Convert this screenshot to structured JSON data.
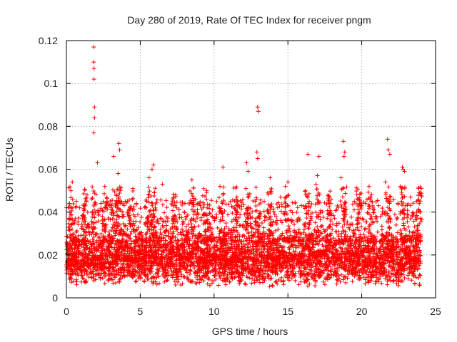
{
  "chart_data": {
    "type": "scatter",
    "title": "Day 280 of 2019, Rate Of TEC Index for receiver pngm",
    "xlabel": "GPS time / hours",
    "ylabel": "ROTI / TECUs",
    "xlim": [
      0,
      25
    ],
    "ylim": [
      0,
      0.12
    ],
    "xticks": [
      0,
      5,
      10,
      15,
      20,
      25
    ],
    "xtick_labels": [
      "0",
      "5",
      "10",
      "15",
      "20",
      "25"
    ],
    "yticks": [
      0,
      0.02,
      0.04,
      0.06,
      0.08,
      0.1,
      0.12
    ],
    "ytick_labels": [
      "0",
      "0.02",
      "0.04",
      "0.06",
      "0.08",
      "0.1",
      "0.12"
    ],
    "grid": true,
    "marker": "+",
    "color": "#ff0000",
    "series": [
      {
        "name": "ROTI",
        "x_range": [
          0,
          24
        ],
        "bulk_range": [
          0.005,
          0.03
        ],
        "points": [
          [
            1.85,
            0.117
          ],
          [
            1.85,
            0.11
          ],
          [
            1.87,
            0.107
          ],
          [
            1.87,
            0.102
          ],
          [
            1.9,
            0.089
          ],
          [
            1.9,
            0.084
          ],
          [
            1.85,
            0.077
          ],
          [
            12.95,
            0.089
          ],
          [
            13.0,
            0.087
          ],
          [
            12.9,
            0.068
          ],
          [
            12.95,
            0.065
          ],
          [
            2.1,
            0.063
          ],
          [
            3.2,
            0.066
          ],
          [
            3.55,
            0.072
          ],
          [
            3.6,
            0.069
          ],
          [
            3.5,
            0.058
          ],
          [
            5.9,
            0.062
          ],
          [
            5.8,
            0.06
          ],
          [
            5.6,
            0.056
          ],
          [
            6.5,
            0.053
          ],
          [
            8.5,
            0.055
          ],
          [
            10.6,
            0.061
          ],
          [
            10.4,
            0.052
          ],
          [
            12.3,
            0.059
          ],
          [
            12.2,
            0.063
          ],
          [
            13.8,
            0.056
          ],
          [
            15.0,
            0.054
          ],
          [
            16.35,
            0.067
          ],
          [
            17.1,
            0.066
          ],
          [
            17.0,
            0.057
          ],
          [
            18.75,
            0.073
          ],
          [
            18.85,
            0.068
          ],
          [
            18.8,
            0.066
          ],
          [
            18.6,
            0.056
          ],
          [
            21.75,
            0.074
          ],
          [
            21.8,
            0.069
          ],
          [
            21.9,
            0.067
          ],
          [
            21.6,
            0.054
          ],
          [
            22.75,
            0.061
          ],
          [
            22.8,
            0.06
          ],
          [
            22.9,
            0.059
          ],
          [
            22.6,
            0.052
          ],
          [
            20.5,
            0.052
          ],
          [
            23.95,
            0.049
          ],
          [
            23.9,
            0.044
          ],
          [
            0.4,
            0.054
          ],
          [
            0.0,
            0.042
          ],
          [
            0.3,
            0.05
          ],
          [
            0.9,
            0.042
          ],
          [
            1.4,
            0.048
          ],
          [
            2.6,
            0.052
          ],
          [
            4.5,
            0.051
          ],
          [
            7.4,
            0.048
          ],
          [
            9.5,
            0.05
          ],
          [
            11.5,
            0.046
          ],
          [
            14.5,
            0.047
          ],
          [
            16.9,
            0.053
          ],
          [
            17.9,
            0.044
          ],
          [
            19.5,
            0.045
          ],
          [
            20.0,
            0.043
          ],
          [
            23.3,
            0.047
          ]
        ]
      }
    ]
  }
}
